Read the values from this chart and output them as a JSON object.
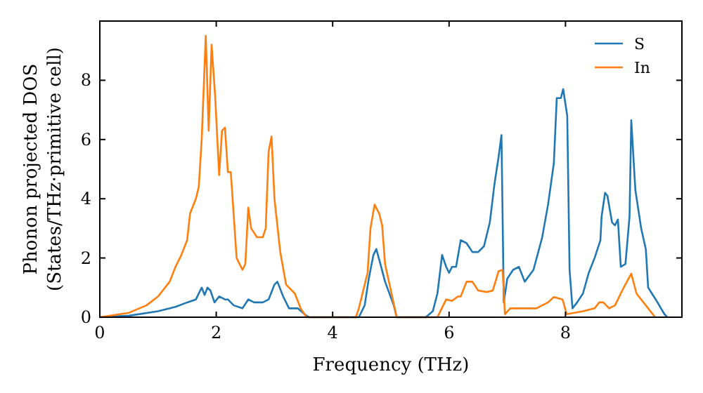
{
  "chart_data": {
    "type": "line",
    "xlabel": "Frequency (THz)",
    "ylabel": "Phonon projected DOS\n(States/THz·primitive cell)",
    "xlim": [
      0,
      10
    ],
    "ylim": [
      0,
      10
    ],
    "xticks": [
      0,
      2,
      4,
      6,
      8
    ],
    "yticks": [
      0,
      2,
      4,
      6,
      8
    ],
    "legend": "top right",
    "grid": false,
    "series": [
      {
        "name": "S",
        "color": "#1f77b4",
        "x": [
          0,
          0.5,
          1.0,
          1.3,
          1.5,
          1.65,
          1.75,
          1.8,
          1.85,
          1.9,
          1.97,
          2.05,
          2.15,
          2.2,
          2.3,
          2.45,
          2.55,
          2.65,
          2.8,
          2.9,
          3.0,
          3.05,
          3.15,
          3.25,
          3.4,
          3.55,
          3.6,
          4.45,
          4.55,
          4.62,
          4.7,
          4.75,
          4.82,
          4.9,
          5.05,
          5.1,
          5.6,
          5.72,
          5.8,
          5.88,
          5.95,
          6.0,
          6.05,
          6.12,
          6.2,
          6.3,
          6.4,
          6.5,
          6.6,
          6.7,
          6.78,
          6.85,
          6.9,
          6.94,
          7.0,
          7.1,
          7.2,
          7.3,
          7.45,
          7.6,
          7.7,
          7.8,
          7.85,
          7.92,
          7.96,
          8.03,
          8.07,
          8.12,
          8.2,
          8.3,
          8.4,
          8.5,
          8.6,
          8.62,
          8.68,
          8.72,
          8.8,
          8.85,
          8.9,
          8.95,
          9.03,
          9.1,
          9.13,
          9.2,
          9.3,
          9.38,
          9.42,
          9.55,
          9.7,
          9.75
        ],
        "values": [
          0,
          0.05,
          0.2,
          0.35,
          0.5,
          0.6,
          1.0,
          0.75,
          1.0,
          0.9,
          0.5,
          0.7,
          0.6,
          0.6,
          0.4,
          0.3,
          0.6,
          0.5,
          0.5,
          0.6,
          1.1,
          1.2,
          0.7,
          0.3,
          0.3,
          0.05,
          0,
          0,
          0.4,
          1.3,
          2.1,
          2.3,
          1.8,
          1.2,
          0.4,
          0,
          0,
          0.2,
          0.8,
          2.1,
          1.7,
          1.5,
          1.7,
          1.7,
          2.6,
          2.5,
          2.2,
          2.2,
          2.4,
          3.2,
          4.5,
          5.4,
          6.15,
          0.5,
          1.3,
          1.6,
          1.7,
          1.2,
          1.6,
          2.7,
          3.8,
          5.2,
          7.4,
          7.4,
          7.7,
          6.8,
          1.6,
          0.3,
          0.5,
          0.8,
          1.5,
          2.0,
          2.6,
          3.4,
          4.2,
          4.1,
          3.2,
          3.1,
          3.3,
          1.7,
          1.8,
          3.4,
          6.65,
          4.3,
          3.0,
          2.3,
          1.0,
          0.6,
          0.1,
          0
        ]
      },
      {
        "name": "In",
        "color": "#ff7f0e",
        "x": [
          0,
          0.5,
          0.8,
          1.0,
          1.2,
          1.3,
          1.4,
          1.5,
          1.55,
          1.65,
          1.7,
          1.75,
          1.82,
          1.87,
          1.92,
          1.98,
          2.05,
          2.1,
          2.15,
          2.2,
          2.25,
          2.35,
          2.45,
          2.5,
          2.55,
          2.6,
          2.7,
          2.8,
          2.85,
          2.9,
          2.95,
          3.0,
          3.1,
          3.2,
          3.35,
          3.45,
          3.55,
          4.4,
          4.45,
          4.6,
          4.65,
          4.72,
          4.8,
          4.85,
          4.9,
          5.1,
          5.8,
          5.85,
          5.95,
          6.05,
          6.15,
          6.2,
          6.3,
          6.4,
          6.5,
          6.65,
          6.75,
          6.85,
          6.92,
          6.96,
          7.05,
          7.3,
          7.5,
          7.7,
          7.8,
          7.95,
          8.02,
          8.3,
          8.5,
          8.58,
          8.65,
          8.75,
          8.85,
          8.95,
          9.0,
          9.13,
          9.22,
          9.42,
          9.54
        ],
        "values": [
          0,
          0.15,
          0.4,
          0.7,
          1.2,
          1.7,
          2.1,
          2.6,
          3.5,
          4.0,
          4.4,
          6.0,
          9.5,
          6.3,
          9.2,
          7.5,
          4.8,
          6.3,
          6.4,
          4.9,
          4.9,
          2.0,
          1.6,
          1.8,
          3.7,
          3.0,
          2.7,
          2.7,
          3.0,
          5.6,
          6.1,
          4.0,
          2.2,
          1.1,
          0.8,
          0.3,
          0,
          0,
          0.3,
          1.5,
          3.0,
          3.8,
          3.5,
          3.1,
          1.8,
          0,
          0,
          0.2,
          0.6,
          0.55,
          0.7,
          0.7,
          1.2,
          1.2,
          0.9,
          0.85,
          0.9,
          1.55,
          1.6,
          0.1,
          0.3,
          0.3,
          0.3,
          0.5,
          0.68,
          0.6,
          0.1,
          0.2,
          0.3,
          0.5,
          0.5,
          0.3,
          0.4,
          0.8,
          1.0,
          1.47,
          0.8,
          0.3,
          0
        ]
      }
    ]
  }
}
